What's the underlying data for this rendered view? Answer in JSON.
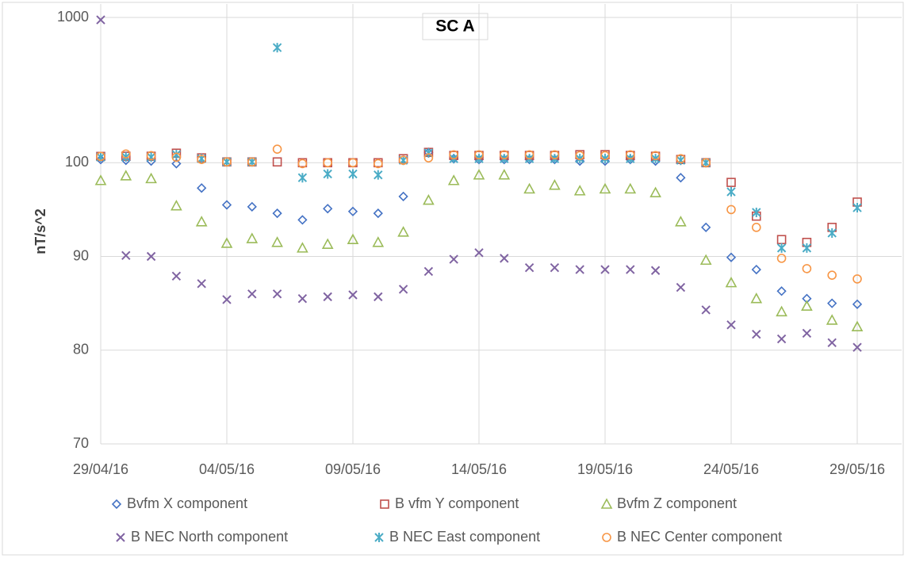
{
  "chart_data": {
    "type": "scatter",
    "title": "SC A",
    "y_label": "nT/s^2",
    "x": [
      "29/04/16",
      "30/04/16",
      "01/05/16",
      "02/05/16",
      "03/05/16",
      "04/05/16",
      "05/05/16",
      "06/05/16",
      "07/05/16",
      "08/05/16",
      "09/05/16",
      "10/05/16",
      "11/05/16",
      "12/05/16",
      "13/05/16",
      "14/05/16",
      "15/05/16",
      "16/05/16",
      "17/05/16",
      "18/05/16",
      "19/05/16",
      "20/05/16",
      "21/05/16",
      "22/05/16",
      "23/05/16",
      "24/05/16",
      "25/05/16",
      "26/05/16",
      "27/05/16",
      "28/05/16",
      "29/05/16"
    ],
    "xlim": [
      "29/04/16",
      "29/05/16"
    ],
    "xticks": [
      "29/04/16",
      "04/05/16",
      "09/05/16",
      "14/05/16",
      "19/05/16",
      "24/05/16",
      "29/05/16"
    ],
    "ylim": [
      70,
      1000
    ],
    "yticks": [
      70,
      80,
      90,
      100,
      1000
    ],
    "grid": true,
    "legend": "bottom",
    "series": [
      {
        "name": "Bvfm X component",
        "color": "#4472c4",
        "marker": "diamond",
        "values": [
          120,
          115,
          110,
          99.9,
          97.3,
          95.5,
          95.3,
          94.6,
          93.9,
          95.1,
          94.8,
          94.6,
          96.4,
          164,
          125,
          120,
          120,
          120,
          120,
          110,
          110,
          120,
          110,
          98.4,
          93.1,
          89.9,
          88.6,
          86.3,
          85.5,
          85,
          84.9
        ]
      },
      {
        "name": "B vfm Y component",
        "color": "#c0504d",
        "marker": "square",
        "values": [
          139,
          140,
          140,
          159,
          130,
          105,
          105,
          105,
          100,
          100,
          100,
          100,
          125,
          164,
          145,
          145,
          145,
          145,
          145,
          150,
          150,
          145,
          140,
          120,
          100,
          97.9,
          94.3,
          91.8,
          91.5,
          93.1,
          95.8
        ]
      },
      {
        "name": "Bvfm Z component",
        "color": "#9bbb59",
        "marker": "triangle",
        "values": [
          98.1,
          98.6,
          98.3,
          95.4,
          93.7,
          91.4,
          91.9,
          91.5,
          90.9,
          91.3,
          91.8,
          91.5,
          92.6,
          96,
          98.1,
          98.7,
          98.7,
          97.2,
          97.6,
          97,
          97.2,
          97.2,
          96.8,
          93.7,
          89.6,
          87.2,
          85.5,
          84.1,
          84.7,
          83.2,
          82.5
        ]
      },
      {
        "name": "B NEC North component",
        "color": "#8064a2",
        "marker": "x",
        "values": [
          985,
          90.1,
          90,
          87.9,
          87.1,
          85.4,
          86,
          86,
          85.5,
          85.7,
          85.9,
          85.7,
          86.5,
          88.4,
          89.7,
          90.4,
          89.8,
          88.8,
          88.8,
          88.6,
          88.6,
          88.6,
          88.5,
          86.7,
          84.3,
          82.7,
          81.7,
          81.2,
          81.8,
          80.8,
          80.3
        ]
      },
      {
        "name": "B NEC East component",
        "color": "#4bacc6",
        "marker": "star",
        "values": [
          135,
          135,
          135,
          150,
          125,
          105,
          105,
          813,
          98.4,
          98.8,
          98.8,
          98.7,
          115,
          160,
          125,
          125,
          125,
          125,
          125,
          125,
          125,
          125,
          125,
          115,
          100,
          96.9,
          94.7,
          90.9,
          90.9,
          92.5,
          95.2
        ]
      },
      {
        "name": "B NEC Center component",
        "color": "#f79646",
        "marker": "circle",
        "values": [
          139,
          154,
          144,
          134,
          120,
          105,
          105,
          184,
          99.9,
          100,
          100,
          99.9,
          115,
          130,
          149,
          149,
          149,
          149,
          149,
          144,
          144,
          149,
          144,
          125,
          100,
          95,
          93.1,
          89.8,
          88.7,
          88,
          87.6
        ]
      }
    ]
  }
}
